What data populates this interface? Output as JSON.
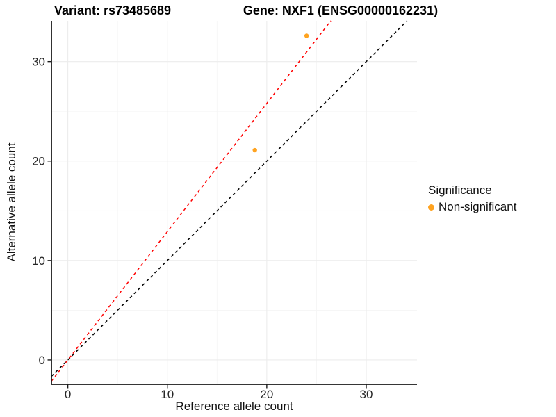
{
  "chart_data": {
    "type": "scatter",
    "title_variant": "Variant: rs73485689",
    "title_gene": "Gene: NXF1 (ENSG00000162231)",
    "xlabel": "Reference allele count",
    "ylabel": "Alternative allele count",
    "xlim": [
      -1.65,
      35.1
    ],
    "ylim": [
      -2.45,
      34.1
    ],
    "xticks": [
      0,
      10,
      20,
      30
    ],
    "yticks": [
      0,
      10,
      20,
      30
    ],
    "minor_grid_step": 5,
    "grid": "major+minor",
    "legend_position": "right",
    "series": [
      {
        "name": "Non-significant",
        "color": "#FFA320",
        "points": [
          {
            "x": 24.0,
            "y": 32.6
          },
          {
            "x": 18.8,
            "y": 21.1
          }
        ]
      }
    ],
    "reference_lines": [
      {
        "name": "identity-line",
        "slope": 1.0,
        "intercept": 0,
        "color": "#000000",
        "style": "dashed"
      },
      {
        "name": "fit-line",
        "slope": 1.29,
        "intercept": 0,
        "color": "#FF0000",
        "style": "dashed"
      }
    ],
    "legend": {
      "title": "Significance",
      "items": [
        {
          "label": "Non-significant",
          "color": "#FFA320"
        }
      ]
    },
    "colors": {
      "axis": "#1a1a1a",
      "tick_text": "#262626",
      "grid_major": "#ECECEC",
      "grid_minor": "#F5F5F5",
      "background": "#FFFFFF"
    }
  }
}
